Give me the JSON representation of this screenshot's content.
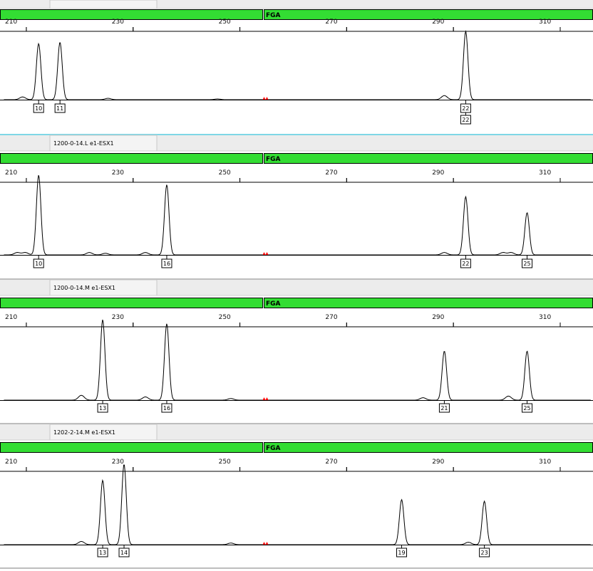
{
  "colors": {
    "marker_bar": "#33dd33",
    "marker_bar_border": "#000000",
    "trace": "#000000",
    "baseline": "#000000",
    "reference_marker": "#ff0000",
    "header_bg": "#ececec",
    "separator_teal": "#7fd7e6",
    "separator_gray": "#bdbdbd"
  },
  "marker_name": "FGA",
  "chart_data": [
    {
      "type": "line",
      "sample_label": "",
      "marker": "FGA",
      "x_ticks": [
        210,
        230,
        250,
        270,
        290,
        310
      ],
      "xlim": [
        209,
        319
      ],
      "reference_marker_x": 258,
      "peaks": [
        {
          "x": 215.5,
          "height": 0.82,
          "allele": "10"
        },
        {
          "x": 219.5,
          "height": 0.84,
          "allele": "11"
        },
        {
          "x": 295.5,
          "height": 1.0,
          "allele": "22",
          "extra_label": "22"
        },
        {
          "x": 212.5,
          "height": 0.04
        },
        {
          "x": 228.5,
          "height": 0.02
        },
        {
          "x": 291.5,
          "height": 0.06
        },
        {
          "x": 249.0,
          "height": 0.01
        }
      ]
    },
    {
      "type": "line",
      "sample_label": "1200-0-14.L e1-ESX1",
      "marker": "FGA",
      "x_ticks": [
        210,
        230,
        250,
        270,
        290,
        310
      ],
      "xlim": [
        209,
        319
      ],
      "reference_marker_x": 258,
      "peaks": [
        {
          "x": 215.5,
          "height": 1.0,
          "allele": "10"
        },
        {
          "x": 239.5,
          "height": 0.88,
          "allele": "16"
        },
        {
          "x": 295.5,
          "height": 0.73,
          "allele": "22"
        },
        {
          "x": 307.0,
          "height": 0.53,
          "allele": "25"
        },
        {
          "x": 211.5,
          "height": 0.03
        },
        {
          "x": 213.0,
          "height": 0.03
        },
        {
          "x": 225.0,
          "height": 0.03
        },
        {
          "x": 228.0,
          "height": 0.02
        },
        {
          "x": 235.5,
          "height": 0.03
        },
        {
          "x": 291.5,
          "height": 0.03
        },
        {
          "x": 302.5,
          "height": 0.03
        },
        {
          "x": 304.0,
          "height": 0.03
        }
      ]
    },
    {
      "type": "line",
      "sample_label": "1200-0-14.M e1-ESX1",
      "marker": "FGA",
      "x_ticks": [
        210,
        230,
        250,
        270,
        290,
        310
      ],
      "xlim": [
        209,
        319
      ],
      "reference_marker_x": 258,
      "peaks": [
        {
          "x": 227.5,
          "height": 1.0,
          "allele": "13"
        },
        {
          "x": 239.5,
          "height": 0.95,
          "allele": "16"
        },
        {
          "x": 291.5,
          "height": 0.61,
          "allele": "21"
        },
        {
          "x": 307.0,
          "height": 0.61,
          "allele": "25"
        },
        {
          "x": 223.5,
          "height": 0.06
        },
        {
          "x": 235.5,
          "height": 0.04
        },
        {
          "x": 287.5,
          "height": 0.03
        },
        {
          "x": 303.5,
          "height": 0.05
        },
        {
          "x": 251.5,
          "height": 0.02
        }
      ]
    },
    {
      "type": "line",
      "sample_label": "1202-2-14.M e1-ESX1",
      "marker": "FGA",
      "x_ticks": [
        210,
        230,
        250,
        270,
        290,
        310
      ],
      "xlim": [
        209,
        319
      ],
      "reference_marker_x": 258,
      "peaks": [
        {
          "x": 227.5,
          "height": 0.8,
          "allele": "13"
        },
        {
          "x": 231.5,
          "height": 1.0,
          "allele": "14"
        },
        {
          "x": 283.5,
          "height": 0.56,
          "allele": "19"
        },
        {
          "x": 299.0,
          "height": 0.54,
          "allele": "23"
        },
        {
          "x": 223.5,
          "height": 0.04
        },
        {
          "x": 251.5,
          "height": 0.02
        },
        {
          "x": 296.0,
          "height": 0.03
        }
      ]
    }
  ]
}
